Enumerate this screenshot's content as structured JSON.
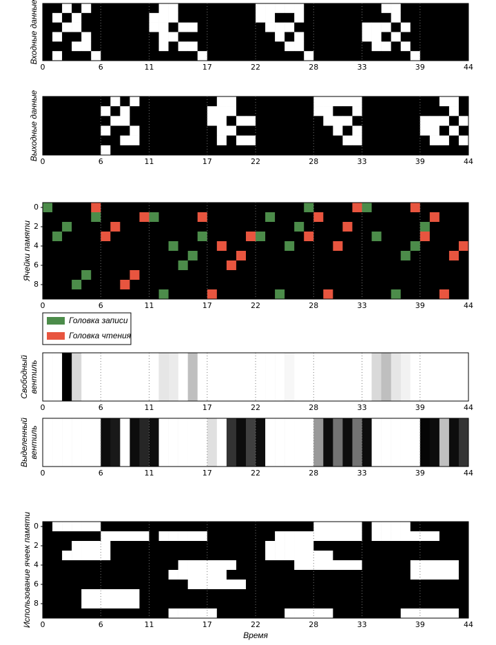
{
  "chart_data": [
    {
      "type": "heatmap",
      "ylabel": [
        "Входные данные"
      ],
      "colormap": "gray",
      "xlim": [
        0,
        44
      ],
      "xticks": [
        0,
        6,
        11,
        17,
        22,
        28,
        33,
        39,
        44
      ],
      "grid": true,
      "z": [
        [
          0,
          0,
          1,
          0,
          1,
          0,
          0,
          0,
          0,
          0,
          0,
          0,
          1,
          1,
          0,
          0,
          0,
          0,
          0,
          0,
          0,
          0,
          1,
          1,
          1,
          1,
          1,
          0,
          0,
          0,
          0,
          0,
          0,
          0,
          0,
          1,
          1,
          0,
          0,
          0,
          0,
          0,
          0,
          0
        ],
        [
          0,
          1,
          0,
          1,
          0,
          0,
          0,
          0,
          0,
          0,
          0,
          1,
          1,
          1,
          0,
          0,
          0,
          0,
          0,
          0,
          0,
          0,
          1,
          1,
          0,
          0,
          1,
          0,
          0,
          0,
          0,
          0,
          0,
          0,
          0,
          0,
          1,
          0,
          0,
          0,
          0,
          0,
          0,
          0
        ],
        [
          0,
          0,
          1,
          1,
          0,
          0,
          0,
          0,
          0,
          0,
          0,
          1,
          1,
          0,
          1,
          1,
          0,
          0,
          0,
          0,
          0,
          0,
          0,
          1,
          1,
          1,
          0,
          0,
          0,
          0,
          0,
          0,
          0,
          1,
          1,
          1,
          0,
          1,
          0,
          0,
          0,
          0,
          0,
          0
        ],
        [
          0,
          1,
          0,
          0,
          1,
          0,
          0,
          0,
          0,
          0,
          0,
          0,
          1,
          1,
          0,
          0,
          0,
          0,
          0,
          0,
          0,
          0,
          0,
          0,
          1,
          0,
          1,
          0,
          0,
          0,
          0,
          0,
          0,
          1,
          1,
          0,
          1,
          0,
          0,
          0,
          0,
          0,
          0,
          0
        ],
        [
          0,
          0,
          0,
          1,
          1,
          0,
          0,
          0,
          0,
          0,
          0,
          0,
          1,
          0,
          1,
          1,
          0,
          0,
          0,
          0,
          0,
          0,
          0,
          0,
          0,
          1,
          1,
          0,
          0,
          0,
          0,
          0,
          0,
          0,
          1,
          1,
          0,
          1,
          0,
          0,
          0,
          0,
          0,
          0
        ],
        [
          0,
          1,
          0,
          0,
          0,
          1,
          0,
          0,
          0,
          0,
          0,
          0,
          0,
          0,
          0,
          0,
          1,
          0,
          0,
          0,
          0,
          0,
          0,
          0,
          0,
          0,
          0,
          1,
          0,
          0,
          0,
          0,
          0,
          0,
          0,
          0,
          0,
          0,
          1,
          0,
          0,
          0,
          0,
          0
        ]
      ]
    },
    {
      "type": "heatmap",
      "ylabel": [
        "Выходные данные"
      ],
      "colormap": "gray",
      "xlim": [
        0,
        44
      ],
      "xticks": [
        0,
        6,
        11,
        17,
        22,
        28,
        33,
        39,
        44
      ],
      "grid": true,
      "z": [
        [
          0,
          0,
          0,
          0,
          0,
          0,
          0,
          1,
          0,
          1,
          0,
          0,
          0,
          0,
          0,
          0,
          0,
          0,
          1,
          1,
          0,
          0,
          0,
          0,
          0,
          0,
          0,
          0,
          1,
          1,
          1,
          1,
          1,
          0,
          0,
          0,
          0,
          0,
          0,
          0,
          0,
          1,
          1,
          0
        ],
        [
          0,
          0,
          0,
          0,
          0,
          0,
          1,
          0,
          1,
          0,
          0,
          0,
          0,
          0,
          0,
          0,
          0,
          1,
          1,
          1,
          0,
          0,
          0,
          0,
          0,
          0,
          0,
          0,
          1,
          1,
          0,
          0,
          1,
          0,
          0,
          0,
          0,
          0,
          0,
          0,
          0,
          0,
          1,
          0
        ],
        [
          0,
          0,
          0,
          0,
          0,
          0,
          0,
          1,
          1,
          0,
          0,
          0,
          0,
          0,
          0,
          0,
          0,
          1,
          1,
          0,
          1,
          1,
          0,
          0,
          0,
          0,
          0,
          0,
          0,
          1,
          1,
          1,
          0,
          0,
          0,
          0,
          0,
          0,
          0,
          1,
          1,
          1,
          0,
          1
        ],
        [
          0,
          0,
          0,
          0,
          0,
          0,
          1,
          0,
          0,
          1,
          0,
          0,
          0,
          0,
          0,
          0,
          0,
          0,
          1,
          1,
          0,
          0,
          0,
          0,
          0,
          0,
          0,
          0,
          0,
          0,
          1,
          0,
          1,
          0,
          0,
          0,
          0,
          0,
          0,
          1,
          1,
          0,
          1,
          0
        ],
        [
          0,
          0,
          0,
          0,
          0,
          0,
          0,
          0,
          1,
          1,
          0,
          0,
          0,
          0,
          0,
          0,
          0,
          0,
          1,
          0,
          1,
          1,
          0,
          0,
          0,
          0,
          0,
          0,
          0,
          0,
          0,
          1,
          1,
          0,
          0,
          0,
          0,
          0,
          0,
          0,
          1,
          1,
          0,
          1
        ],
        [
          0,
          0,
          0,
          0,
          0,
          0,
          1,
          0,
          0,
          0,
          0,
          0,
          0,
          0,
          0,
          0,
          0,
          0,
          0,
          0,
          0,
          0,
          0,
          0,
          0,
          0,
          0,
          0,
          0,
          0,
          0,
          0,
          0,
          0,
          0,
          0,
          0,
          0,
          0,
          0,
          0,
          0,
          0,
          0
        ]
      ]
    },
    {
      "type": "scatter",
      "ylabel": [
        "Ячейки памяти"
      ],
      "xlim": [
        0,
        44
      ],
      "xticks": [
        0,
        6,
        11,
        17,
        22,
        28,
        33,
        39,
        44
      ],
      "ylim": [
        -0.5,
        9.5
      ],
      "yticks": [
        0,
        2,
        4,
        6,
        8
      ],
      "grid": true,
      "legend": "below",
      "series": [
        {
          "name": "Головка записи",
          "color": "#4c8c4a",
          "x": [
            0,
            2,
            1,
            5,
            4,
            3,
            11,
            12,
            13,
            15,
            14,
            16,
            22,
            23,
            25,
            24,
            26,
            27,
            33,
            34,
            36,
            37,
            38,
            39
          ],
          "y": [
            0,
            2,
            3,
            1,
            7,
            8,
            1,
            9,
            4,
            5,
            6,
            3,
            3,
            1,
            4,
            9,
            2,
            0,
            0,
            3,
            9,
            5,
            4,
            2
          ]
        },
        {
          "name": "Головка чтения",
          "color": "#e8553f",
          "x": [
            5,
            6,
            7,
            8,
            9,
            10,
            16,
            17,
            18,
            19,
            20,
            21,
            27,
            28,
            29,
            30,
            31,
            32,
            38,
            39,
            40,
            41,
            42,
            43
          ],
          "y": [
            0,
            3,
            2,
            8,
            7,
            1,
            1,
            9,
            4,
            6,
            5,
            3,
            3,
            1,
            9,
            4,
            2,
            0,
            0,
            3,
            1,
            9,
            5,
            4
          ]
        }
      ]
    },
    {
      "type": "heatmap",
      "ylabel": [
        "Свободный",
        "вентиль"
      ],
      "colormap": "gray_r",
      "xlim": [
        0,
        44
      ],
      "xticks": [
        0,
        6,
        11,
        17,
        22,
        28,
        33,
        39,
        44
      ],
      "grid": true,
      "z": [
        [
          0,
          0,
          1,
          0.15,
          0,
          0,
          0,
          0,
          0,
          0,
          0,
          0,
          0.1,
          0.08,
          0,
          0.25,
          0,
          0,
          0,
          0,
          0,
          0,
          0,
          0,
          0,
          0.03,
          0,
          0,
          0,
          0,
          0,
          0,
          0,
          0,
          0.15,
          0.25,
          0.1,
          0.05,
          0,
          0,
          0,
          0,
          0,
          0
        ]
      ]
    },
    {
      "type": "heatmap",
      "ylabel": [
        "Выделенный",
        "вентиль"
      ],
      "colormap": "gray_r",
      "xlim": [
        0,
        44
      ],
      "xticks": [
        0,
        6,
        11,
        17,
        22,
        28,
        33,
        39,
        44
      ],
      "grid": true,
      "z": [
        [
          0,
          0,
          0,
          0,
          0,
          0,
          0.95,
          0.9,
          0,
          0.95,
          0.85,
          0.95,
          0,
          0,
          0,
          0,
          0,
          0.12,
          0,
          0.8,
          0.95,
          0.75,
          0.95,
          0,
          0,
          0,
          0,
          0,
          0.4,
          0.95,
          0.55,
          0.95,
          0.55,
          0.95,
          0,
          0,
          0,
          0,
          0,
          0.98,
          0.95,
          0.25,
          0.95,
          0.8
        ]
      ]
    },
    {
      "type": "heatmap",
      "ylabel": [
        "Использование ячеек памяти"
      ],
      "xlabel": "Время",
      "colormap": "gray",
      "xlim": [
        0,
        44
      ],
      "xticks": [
        0,
        6,
        11,
        17,
        22,
        28,
        33,
        39,
        44
      ],
      "ylim": [
        -0.5,
        9.5
      ],
      "yticks": [
        0,
        2,
        4,
        6,
        8
      ],
      "grid": true,
      "z": [
        [
          0,
          1,
          1,
          1,
          1,
          1,
          0,
          0,
          0,
          0,
          0,
          0,
          0,
          0,
          0,
          0,
          0,
          0,
          0,
          0,
          0,
          0,
          0,
          0,
          0,
          0,
          0,
          0,
          1,
          1,
          1,
          1,
          1,
          0,
          1,
          1,
          1,
          1,
          0,
          0,
          0,
          0,
          0,
          0
        ],
        [
          0,
          0,
          0,
          0,
          0,
          0,
          1,
          1,
          1,
          1,
          1,
          0,
          1,
          1,
          1,
          1,
          1,
          0,
          0,
          0,
          0,
          0,
          0,
          0,
          1,
          1,
          1,
          1,
          1,
          1,
          1,
          1,
          1,
          0,
          1,
          1,
          1,
          1,
          1,
          1,
          1,
          0,
          0,
          0
        ],
        [
          0,
          0,
          0,
          1,
          1,
          1,
          1,
          0,
          0,
          0,
          0,
          0,
          0,
          0,
          0,
          0,
          0,
          0,
          0,
          0,
          0,
          0,
          0,
          1,
          1,
          1,
          1,
          1,
          0,
          0,
          0,
          0,
          0,
          0,
          0,
          0,
          0,
          0,
          0,
          0,
          0,
          0,
          0,
          0
        ],
        [
          0,
          0,
          1,
          1,
          1,
          1,
          1,
          0,
          0,
          0,
          0,
          0,
          0,
          0,
          0,
          0,
          0,
          0,
          0,
          0,
          0,
          0,
          0,
          1,
          1,
          1,
          1,
          1,
          1,
          1,
          0,
          0,
          0,
          0,
          0,
          0,
          0,
          0,
          0,
          0,
          0,
          0,
          0,
          0
        ],
        [
          0,
          0,
          0,
          0,
          0,
          0,
          0,
          0,
          0,
          0,
          0,
          0,
          0,
          0,
          1,
          1,
          1,
          1,
          1,
          1,
          0,
          0,
          0,
          0,
          0,
          0,
          1,
          1,
          1,
          1,
          1,
          1,
          1,
          0,
          0,
          0,
          0,
          0,
          1,
          1,
          1,
          1,
          1,
          0
        ],
        [
          0,
          0,
          0,
          0,
          0,
          0,
          0,
          0,
          0,
          0,
          0,
          0,
          0,
          1,
          1,
          1,
          1,
          1,
          1,
          0,
          0,
          0,
          0,
          0,
          0,
          0,
          0,
          0,
          0,
          0,
          0,
          0,
          0,
          0,
          0,
          0,
          0,
          0,
          1,
          1,
          1,
          1,
          1,
          0
        ],
        [
          0,
          0,
          0,
          0,
          0,
          0,
          0,
          0,
          0,
          0,
          0,
          0,
          0,
          0,
          0,
          1,
          1,
          1,
          1,
          1,
          1,
          0,
          0,
          0,
          0,
          0,
          0,
          0,
          0,
          0,
          0,
          0,
          0,
          0,
          0,
          0,
          0,
          0,
          0,
          0,
          0,
          0,
          0,
          0
        ],
        [
          0,
          0,
          0,
          0,
          1,
          1,
          1,
          1,
          1,
          1,
          0,
          0,
          0,
          0,
          0,
          0,
          0,
          0,
          0,
          0,
          0,
          0,
          0,
          0,
          0,
          0,
          0,
          0,
          0,
          0,
          0,
          0,
          0,
          0,
          0,
          0,
          0,
          0,
          0,
          0,
          0,
          0,
          0,
          0
        ],
        [
          0,
          0,
          0,
          0,
          1,
          1,
          1,
          1,
          1,
          1,
          0,
          0,
          0,
          0,
          0,
          0,
          0,
          0,
          0,
          0,
          0,
          0,
          0,
          0,
          0,
          0,
          0,
          0,
          0,
          0,
          0,
          0,
          0,
          0,
          0,
          0,
          0,
          0,
          0,
          0,
          0,
          0,
          0,
          0
        ],
        [
          0,
          0,
          0,
          0,
          0,
          0,
          0,
          0,
          0,
          0,
          0,
          0,
          0,
          1,
          1,
          1,
          1,
          1,
          0,
          0,
          0,
          0,
          0,
          0,
          0,
          1,
          1,
          1,
          1,
          1,
          0,
          0,
          0,
          0,
          0,
          0,
          0,
          1,
          1,
          1,
          1,
          1,
          1,
          0
        ]
      ]
    }
  ]
}
